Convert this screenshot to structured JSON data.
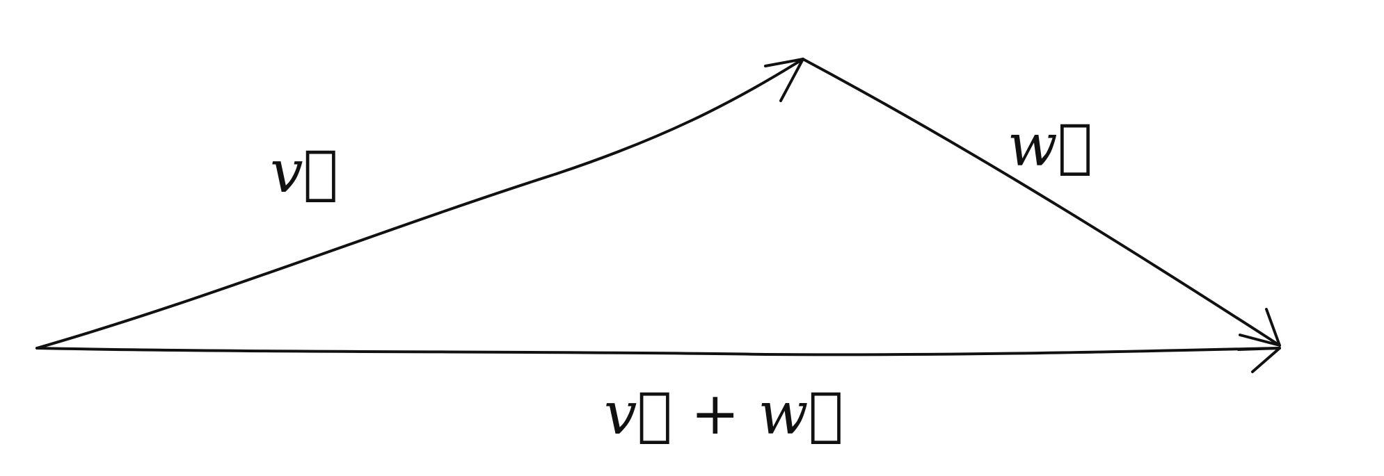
{
  "edges": [
    {
      "label": "v⃗"
    },
    {
      "label": "w⃗"
    },
    {
      "label": "v⃗ + w⃗"
    }
  ]
}
